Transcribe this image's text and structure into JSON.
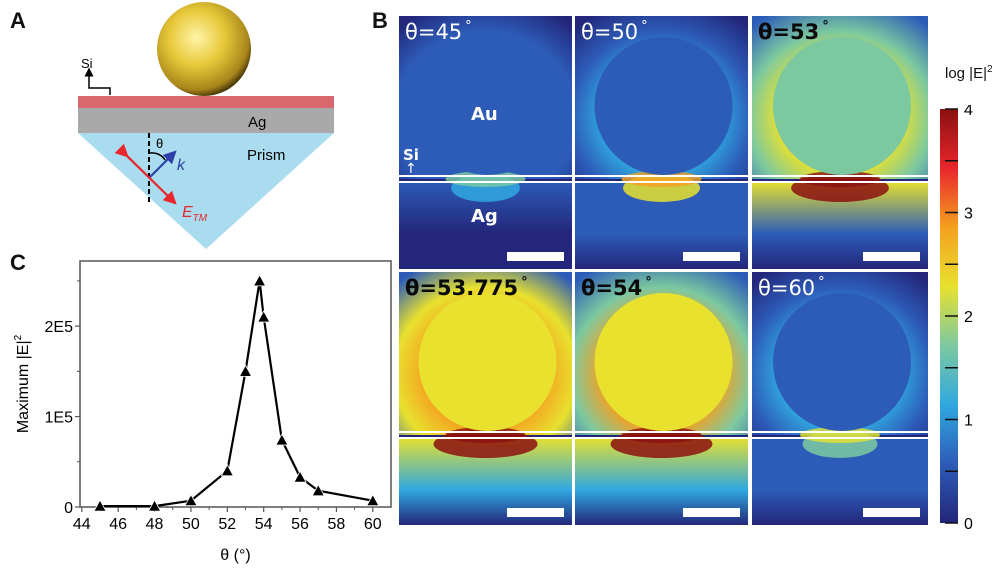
{
  "panel_labels": {
    "a": "A",
    "b": "B",
    "c": "C"
  },
  "schematic": {
    "si_label": "Si",
    "ag_label": "Ag",
    "prism_label": "Prism",
    "theta_label": "θ",
    "k_label": "k",
    "e_label": "E",
    "e_sub": "TM",
    "colors": {
      "gold": "#e8c93a",
      "si_layer": "#d9676e",
      "ag_layer": "#a9a9a9",
      "prism": "#aadcef",
      "k_arrow": "#2e3fa8",
      "e_arrow": "#e8262b"
    }
  },
  "field_maps": {
    "maps": [
      {
        "theta": "θ=45",
        "intensity": 0.15,
        "text_style": "light",
        "labels": {
          "au": "Au",
          "si": "Si",
          "ag": "Ag"
        }
      },
      {
        "theta": "θ=50",
        "intensity": 0.35,
        "text_style": "light"
      },
      {
        "theta": "θ=53",
        "intensity": 0.85,
        "text_style": "dark"
      },
      {
        "theta": "θ=53.775",
        "intensity": 1.0,
        "text_style": "dark"
      },
      {
        "theta": "θ=54",
        "intensity": 0.95,
        "text_style": "dark"
      },
      {
        "theta": "θ=60",
        "intensity": 0.3,
        "text_style": "light"
      }
    ],
    "degree_symbol": "°",
    "colorbar": {
      "title": "log |E|",
      "title_sup": "2",
      "ticks": [
        "0",
        "1",
        "2",
        "3",
        "4"
      ],
      "range": [
        0,
        4
      ],
      "colors": [
        "#23267a",
        "#2d5cb8",
        "#30a8e0",
        "#7cc9a0",
        "#e8e12e",
        "#f5a020",
        "#e8262b",
        "#8b1010"
      ]
    }
  },
  "chart_data": {
    "type": "line",
    "title": "",
    "xlabel": "θ (°)",
    "ylabel": "Maximum |E|",
    "ylabel_sup": "2",
    "x": [
      45,
      48,
      50,
      52,
      53,
      53.775,
      54,
      55,
      56,
      57,
      60
    ],
    "series": [
      {
        "name": "Maximum |E|^2",
        "marker": "triangle",
        "values": [
          1000,
          1000,
          7000,
          40000,
          150000,
          250000,
          210000,
          74000,
          33000,
          18000,
          7000
        ]
      }
    ],
    "xlim": [
      43.9,
      61
    ],
    "ylim": [
      0,
      272000
    ],
    "xticks": [
      44,
      46,
      48,
      50,
      52,
      54,
      56,
      58,
      60
    ],
    "yticks": [
      0,
      100000,
      200000
    ],
    "ytick_labels": [
      "0",
      "1E5",
      "2E5"
    ],
    "y_minor_ticks": [
      50000,
      150000,
      250000
    ],
    "x_minor_ticks": [
      45,
      47,
      49,
      51,
      53,
      55,
      57,
      59
    ],
    "grid": false,
    "legend": "none"
  }
}
